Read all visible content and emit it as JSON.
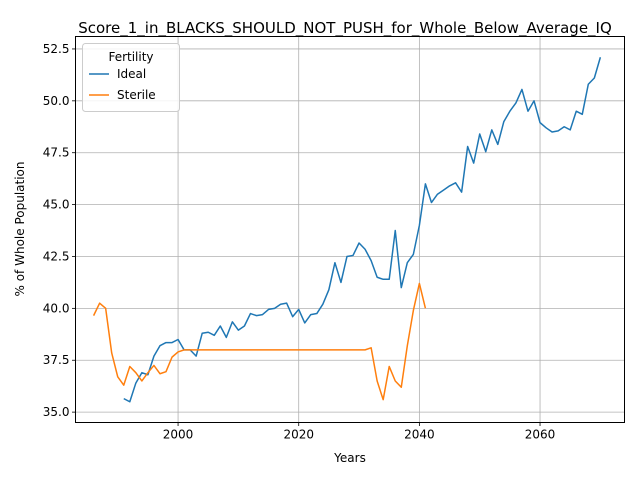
{
  "chart_data": {
    "type": "line",
    "title": "Score_1_in_BLACKS_SHOULD_NOT_PUSH_for_Whole_Below_Average_IQ",
    "xlabel": "Years",
    "ylabel": "% of Whole Population",
    "xlim": [
      1983,
      2074
    ],
    "ylim": [
      34.5,
      53.1
    ],
    "xticks": [
      2000,
      2020,
      2040,
      2060
    ],
    "xtick_labels": [
      "2000",
      "2020",
      "2040",
      "2060"
    ],
    "yticks": [
      35.0,
      37.5,
      40.0,
      42.5,
      45.0,
      47.5,
      50.0,
      52.5
    ],
    "ytick_labels": [
      "35.0",
      "37.5",
      "40.0",
      "42.5",
      "45.0",
      "47.5",
      "50.0",
      "52.5"
    ],
    "grid": true,
    "legend": {
      "title": "Fertility",
      "placement": "upper-left"
    },
    "series": [
      {
        "name": "Ideal",
        "color": "#1f77b4",
        "x": [
          1991,
          1992,
          1993,
          1994,
          1995,
          1996,
          1997,
          1998,
          1999,
          2000,
          2001,
          2002,
          2003,
          2004,
          2005,
          2006,
          2007,
          2008,
          2009,
          2010,
          2011,
          2012,
          2013,
          2014,
          2015,
          2016,
          2017,
          2018,
          2019,
          2020,
          2021,
          2022,
          2023,
          2024,
          2025,
          2026,
          2027,
          2028,
          2029,
          2030,
          2031,
          2032,
          2033,
          2034,
          2035,
          2036,
          2037,
          2038,
          2039,
          2040,
          2041,
          2042,
          2043,
          2044,
          2045,
          2046,
          2047,
          2048,
          2049,
          2050,
          2051,
          2052,
          2053,
          2054,
          2055,
          2056,
          2057,
          2058,
          2059,
          2060,
          2061,
          2062,
          2063,
          2064,
          2065,
          2066,
          2067,
          2068,
          2069,
          2070
        ],
        "values": [
          35.65,
          35.5,
          36.4,
          36.9,
          36.8,
          37.7,
          38.2,
          38.35,
          38.35,
          38.5,
          38.0,
          38.0,
          37.7,
          38.8,
          38.85,
          38.7,
          39.15,
          38.6,
          39.35,
          38.95,
          39.15,
          39.75,
          39.65,
          39.7,
          39.95,
          40.0,
          40.2,
          40.25,
          39.6,
          39.95,
          39.3,
          39.7,
          39.75,
          40.2,
          40.9,
          42.2,
          41.25,
          42.5,
          42.55,
          43.15,
          42.85,
          42.3,
          41.5,
          41.4,
          41.4,
          43.75,
          41.0,
          42.2,
          42.6,
          44.0,
          46.0,
          45.1,
          45.5,
          45.7,
          45.9,
          46.05,
          45.6,
          47.8,
          47.0,
          48.4,
          47.55,
          48.6,
          47.9,
          49.0,
          49.5,
          49.9,
          50.55,
          49.5,
          50.0,
          48.95,
          48.7,
          48.5,
          48.55,
          48.75,
          48.6,
          49.5,
          49.35,
          50.8,
          51.1,
          52.1
        ]
      },
      {
        "name": "Sterile",
        "color": "#ff7f0e",
        "x": [
          1986,
          1987,
          1988,
          1989,
          1990,
          1991,
          1992,
          1993,
          1994,
          1995,
          1996,
          1997,
          1998,
          1999,
          2000,
          2001,
          2002,
          2003,
          2004,
          2005,
          2006,
          2007,
          2008,
          2009,
          2010,
          2011,
          2012,
          2013,
          2014,
          2015,
          2016,
          2017,
          2018,
          2019,
          2020,
          2021,
          2022,
          2023,
          2024,
          2025,
          2026,
          2027,
          2028,
          2029,
          2030,
          2031,
          2032,
          2033,
          2034,
          2035,
          2036,
          2037,
          2038,
          2039,
          2040,
          2041
        ],
        "values": [
          39.65,
          40.25,
          40.0,
          37.85,
          36.7,
          36.3,
          37.2,
          36.9,
          36.5,
          36.9,
          37.25,
          36.85,
          36.95,
          37.65,
          37.9,
          38.0,
          38.0,
          38.0,
          38.0,
          38.0,
          38.0,
          38.0,
          38.0,
          38.0,
          38.0,
          38.0,
          38.0,
          38.0,
          38.0,
          38.0,
          38.0,
          38.0,
          38.0,
          38.0,
          38.0,
          38.0,
          38.0,
          38.0,
          38.0,
          38.0,
          38.0,
          38.0,
          38.0,
          38.0,
          38.0,
          38.0,
          38.1,
          36.5,
          35.6,
          37.2,
          36.5,
          36.2,
          38.2,
          39.9,
          41.2,
          40.0
        ]
      }
    ]
  }
}
